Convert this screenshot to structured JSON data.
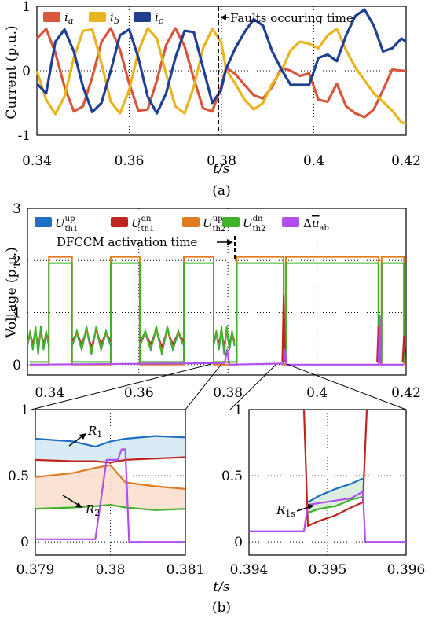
{
  "chart_data": [
    {
      "panel": "a-current",
      "type": "line",
      "ylabel": "Current (p.u.)",
      "xlabel": "t/s",
      "xlim": [
        0.34,
        0.42
      ],
      "ylim": [
        -1,
        1
      ],
      "xticks": [
        "0.34",
        "0.36",
        "0.38",
        "0.4",
        "0.42"
      ],
      "yticks": [
        "-1",
        "0",
        "1"
      ],
      "legend": [
        "i_a",
        "i_b",
        "i_c"
      ],
      "legend_placement": "top-left",
      "annotation": "Faults occuring time",
      "event_time": 0.3799,
      "series": [
        {
          "name": "i_a",
          "color": "#d9553b",
          "x": [
            0.34,
            0.342,
            0.344,
            0.346,
            0.348,
            0.35,
            0.352,
            0.354,
            0.356,
            0.358,
            0.36,
            0.362,
            0.364,
            0.366,
            0.368,
            0.37,
            0.372,
            0.374,
            0.376,
            0.378,
            0.3799,
            0.381,
            0.383,
            0.385,
            0.387,
            0.389,
            0.391,
            0.393,
            0.395,
            0.397,
            0.399,
            0.401,
            0.403,
            0.405,
            0.407,
            0.409,
            0.411,
            0.413,
            0.415,
            0.417,
            0.419,
            0.42
          ],
          "y": [
            0.5,
            0.65,
            0.28,
            -0.25,
            -0.63,
            -0.55,
            -0.1,
            0.45,
            0.66,
            0.33,
            -0.2,
            -0.62,
            -0.6,
            -0.15,
            0.4,
            0.66,
            0.38,
            -0.12,
            -0.58,
            -0.63,
            -0.25,
            0.05,
            -0.05,
            -0.22,
            -0.38,
            -0.43,
            -0.25,
            0.05,
            0.0,
            -0.08,
            -0.04,
            -0.45,
            -0.48,
            -0.2,
            -0.55,
            -0.66,
            -0.72,
            -0.6,
            -0.3,
            0.02,
            0.0,
            0.0
          ]
        },
        {
          "name": "i_b",
          "color": "#e8b51f",
          "x": [
            0.34,
            0.342,
            0.344,
            0.346,
            0.348,
            0.35,
            0.352,
            0.354,
            0.356,
            0.358,
            0.36,
            0.362,
            0.364,
            0.366,
            0.368,
            0.37,
            0.372,
            0.374,
            0.376,
            0.378,
            0.3799,
            0.381,
            0.383,
            0.385,
            0.387,
            0.389,
            0.391,
            0.393,
            0.395,
            0.397,
            0.399,
            0.401,
            0.403,
            0.405,
            0.407,
            0.409,
            0.411,
            0.413,
            0.415,
            0.417,
            0.419,
            0.42
          ],
          "y": [
            0.0,
            -0.45,
            -0.67,
            -0.4,
            0.2,
            0.62,
            0.64,
            0.12,
            -0.48,
            -0.66,
            -0.3,
            0.3,
            0.66,
            0.5,
            -0.05,
            -0.55,
            -0.66,
            -0.25,
            0.35,
            0.65,
            0.45,
            0.02,
            -0.2,
            -0.45,
            -0.6,
            -0.5,
            -0.2,
            0.0,
            0.32,
            0.45,
            0.42,
            0.35,
            0.55,
            0.65,
            0.32,
            0.05,
            -0.15,
            -0.35,
            -0.48,
            -0.62,
            -0.8,
            -0.82
          ]
        },
        {
          "name": "i_c",
          "color": "#1f3f93",
          "x": [
            0.34,
            0.342,
            0.344,
            0.346,
            0.348,
            0.35,
            0.352,
            0.354,
            0.356,
            0.358,
            0.36,
            0.362,
            0.364,
            0.366,
            0.368,
            0.37,
            0.372,
            0.374,
            0.376,
            0.378,
            0.3799,
            0.381,
            0.383,
            0.385,
            0.387,
            0.389,
            0.391,
            0.393,
            0.395,
            0.397,
            0.399,
            0.401,
            0.403,
            0.405,
            0.407,
            0.409,
            0.411,
            0.413,
            0.415,
            0.417,
            0.419,
            0.42
          ],
          "y": [
            -0.2,
            -0.35,
            0.45,
            0.64,
            0.3,
            -0.25,
            -0.64,
            -0.5,
            0.0,
            0.55,
            0.64,
            0.2,
            -0.4,
            -0.66,
            -0.35,
            0.2,
            0.62,
            0.6,
            0.05,
            -0.5,
            -0.3,
            0.03,
            0.35,
            0.6,
            0.8,
            0.7,
            0.3,
            0.02,
            -0.22,
            -0.22,
            -0.22,
            0.2,
            0.25,
            0.15,
            0.55,
            0.85,
            0.95,
            0.7,
            0.3,
            0.35,
            0.5,
            0.45
          ]
        }
      ],
      "caption": "(a)"
    },
    {
      "panel": "b-voltage",
      "type": "line",
      "ylabel": "Voltage (p.u.)",
      "xlim": [
        0.335,
        0.42
      ],
      "ylim": [
        -0.2,
        3.0
      ],
      "xticks": [
        "0.34",
        "0.36",
        "0.38",
        "0.4",
        "0.42"
      ],
      "yticks": [
        "0",
        "1",
        "2",
        "3"
      ],
      "legend_placement": "top",
      "annotation": "DFCCM activation time",
      "event_time": 0.3805,
      "series": [
        {
          "name": "U_th1^up",
          "color": "#1f6fc4"
        },
        {
          "name": "U_th1^dn",
          "color": "#c0241f"
        },
        {
          "name": "U_th2^up",
          "color": "#e07b22"
        },
        {
          "name": "U_th2^dn",
          "color": "#3fb12a"
        },
        {
          "name": "Δū_ab",
          "color": "#b24ef0"
        }
      ]
    },
    {
      "panel": "b-zoom-left",
      "type": "line",
      "xlim": [
        0.379,
        0.381
      ],
      "ylim": [
        -0.1,
        1.0
      ],
      "xticks": [
        "0.379",
        "0.38",
        "0.381"
      ],
      "yticks": [
        "0",
        "0.5",
        "1"
      ],
      "regions": [
        "R1",
        "R2"
      ],
      "series": [
        {
          "name": "U_th1^up",
          "color": "#1f6fc4",
          "x": [
            0.379,
            0.3795,
            0.3798,
            0.38,
            0.3802,
            0.3806,
            0.381
          ],
          "y": [
            0.78,
            0.76,
            0.72,
            0.76,
            0.78,
            0.8,
            0.79
          ]
        },
        {
          "name": "U_th1^dn",
          "color": "#c0241f",
          "x": [
            0.379,
            0.3795,
            0.3798,
            0.38,
            0.3802,
            0.3806,
            0.381
          ],
          "y": [
            0.62,
            0.61,
            0.61,
            0.6,
            0.62,
            0.63,
            0.64
          ]
        },
        {
          "name": "U_th2^up",
          "color": "#e07b22",
          "x": [
            0.379,
            0.3795,
            0.3798,
            0.38,
            0.3802,
            0.3806,
            0.381
          ],
          "y": [
            0.49,
            0.52,
            0.56,
            0.58,
            0.45,
            0.42,
            0.4
          ]
        },
        {
          "name": "U_th2^dn",
          "color": "#3fb12a",
          "x": [
            0.379,
            0.3795,
            0.3798,
            0.38,
            0.3802,
            0.3806,
            0.381
          ],
          "y": [
            0.25,
            0.26,
            0.27,
            0.28,
            0.26,
            0.24,
            0.25
          ]
        },
        {
          "name": "Δū_ab",
          "color": "#b24ef0",
          "x": [
            0.379,
            0.3798,
            0.37995,
            0.3801,
            0.38015,
            0.3802,
            0.38025,
            0.381
          ],
          "y": [
            0.02,
            0.02,
            0.62,
            0.62,
            0.7,
            0.7,
            0.0,
            0.0
          ]
        }
      ]
    },
    {
      "panel": "b-zoom-right",
      "type": "line",
      "xlabel": "t/s",
      "xlim": [
        0.394,
        0.396
      ],
      "ylim": [
        -0.1,
        1.0
      ],
      "xticks": [
        "0.394",
        "0.395",
        "0.396"
      ],
      "yticks": [
        "0",
        "0.5",
        "1"
      ],
      "regions": [
        "R1s"
      ],
      "series": [
        {
          "name": "U_th1^up",
          "color": "#1f6fc4",
          "x": [
            0.39475,
            0.3949,
            0.3951,
            0.3953,
            0.39545
          ],
          "y": [
            0.3,
            0.35,
            0.4,
            0.44,
            0.48
          ]
        },
        {
          "name": "U_th1^dn",
          "color": "#c0241f",
          "x": [
            0.3947,
            0.39475,
            0.3949,
            0.3951,
            0.3953,
            0.39545,
            0.3955
          ],
          "y": [
            1.0,
            0.12,
            0.16,
            0.2,
            0.26,
            0.3,
            1.0
          ]
        },
        {
          "name": "U_th2^dn",
          "color": "#3fb12a",
          "x": [
            0.39475,
            0.3949,
            0.3951,
            0.3953,
            0.39545
          ],
          "y": [
            0.22,
            0.25,
            0.27,
            0.32,
            0.34
          ]
        },
        {
          "name": "Δū_ab",
          "color": "#b24ef0",
          "x": [
            0.394,
            0.3947,
            0.39475,
            0.3953,
            0.39545,
            0.39548,
            0.396
          ],
          "y": [
            0.08,
            0.08,
            0.28,
            0.33,
            0.38,
            0.0,
            0.0
          ]
        }
      ]
    }
  ],
  "bottom_xlabel": "t/s",
  "bottom_caption": "(b)"
}
